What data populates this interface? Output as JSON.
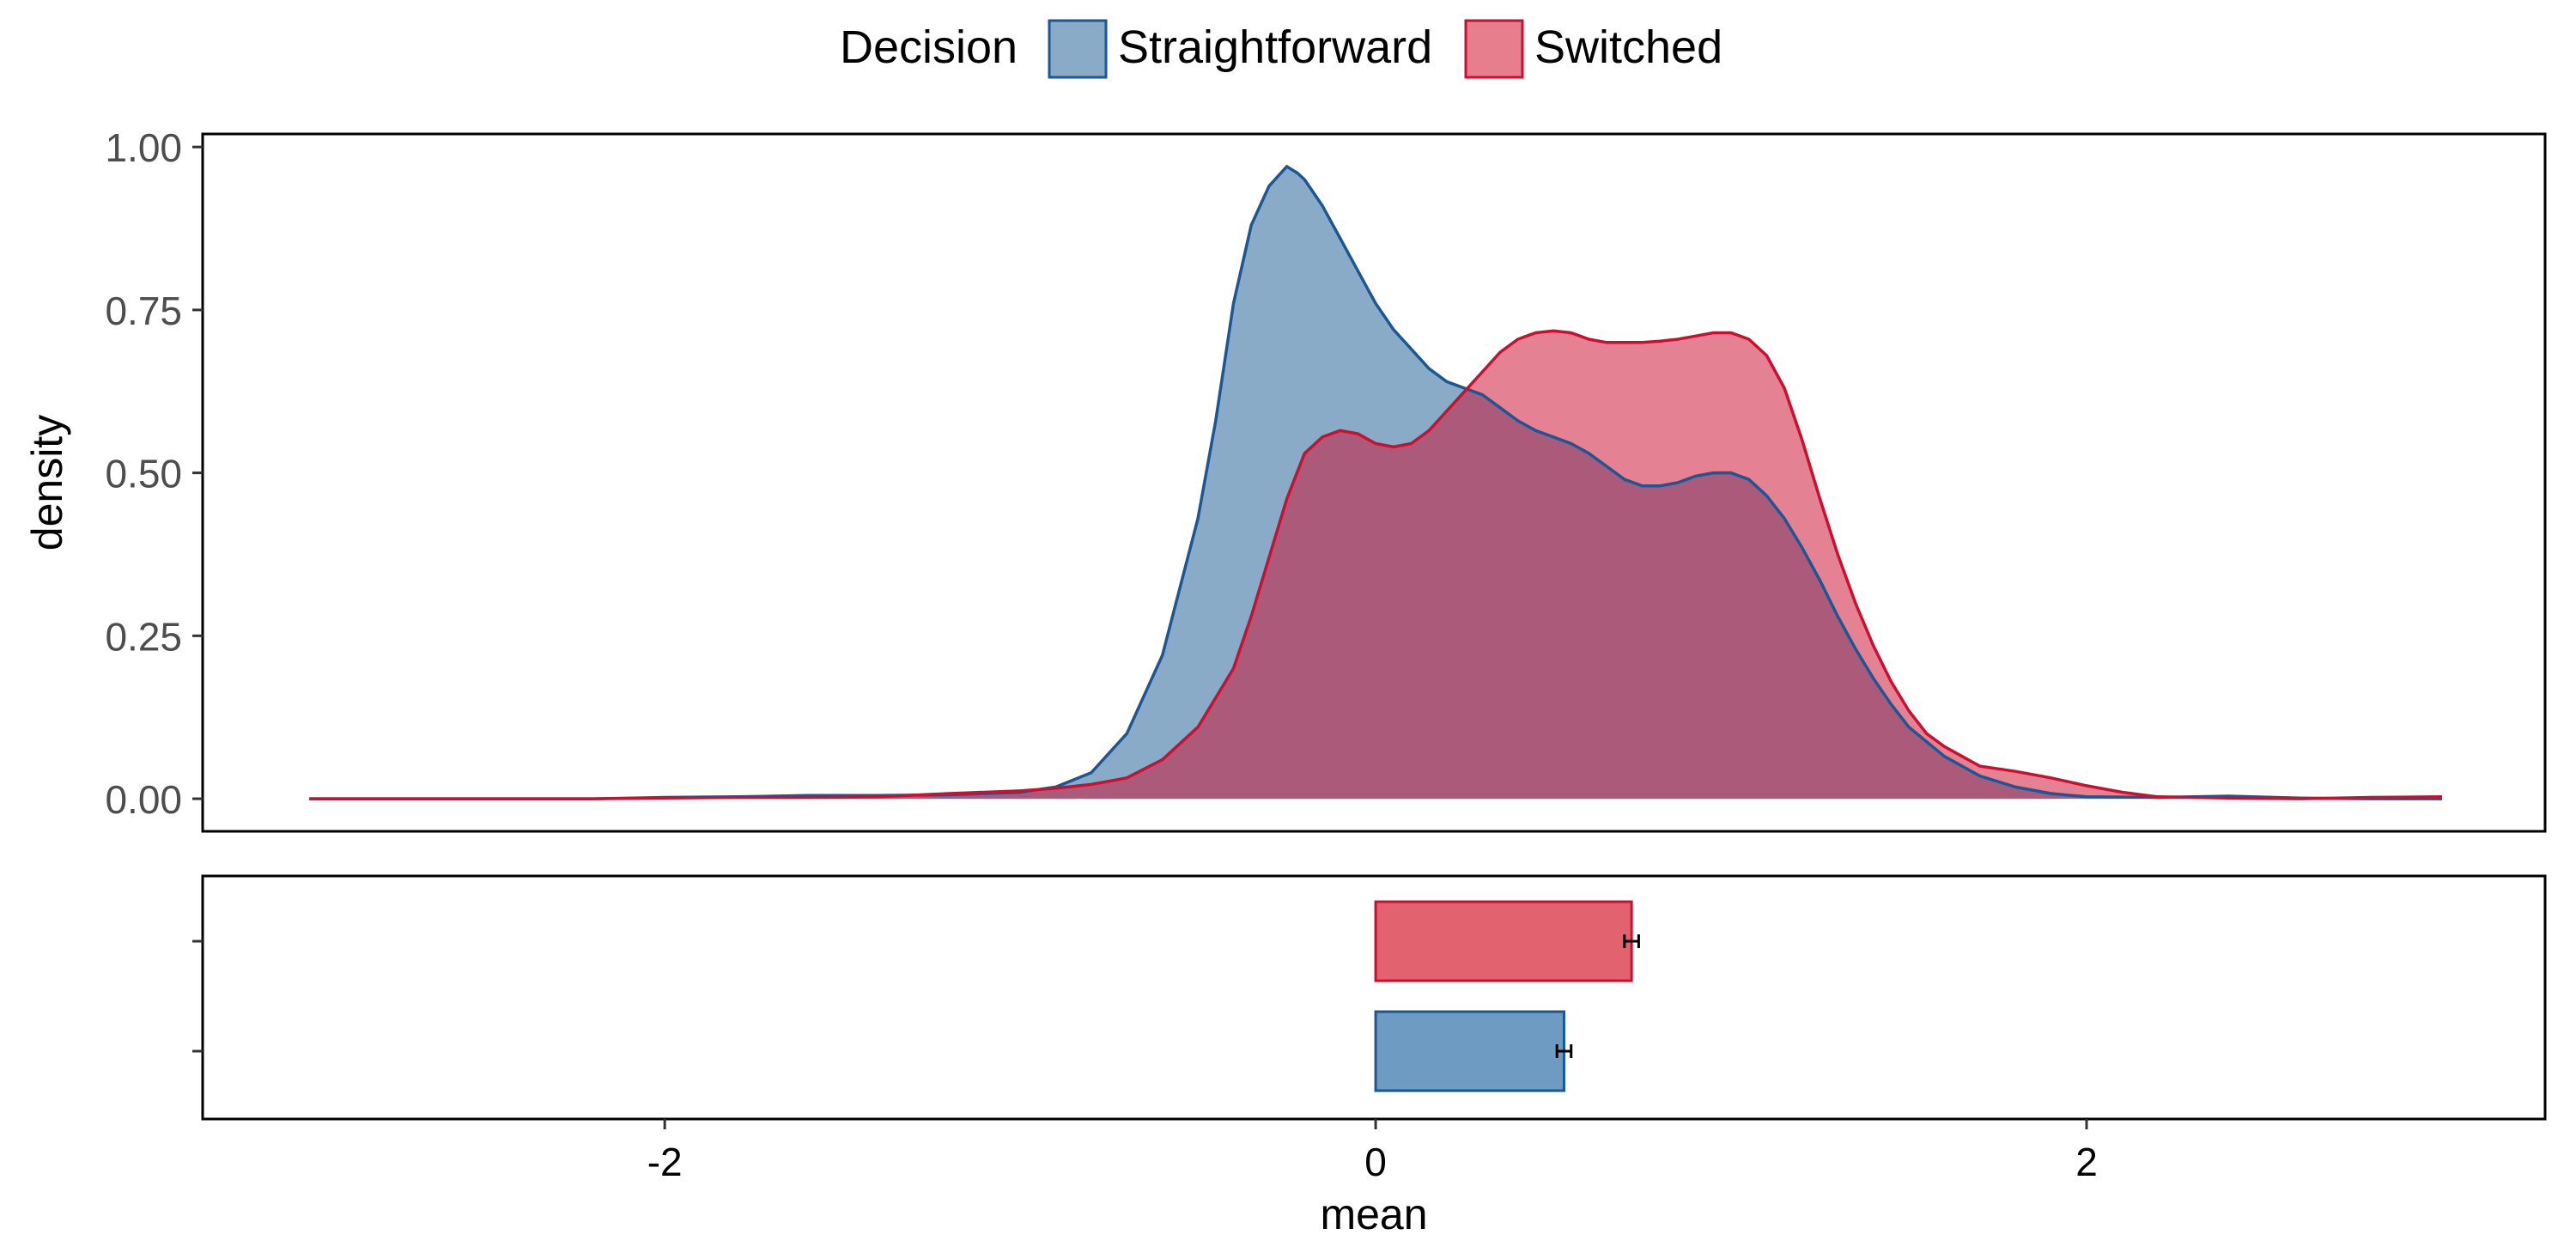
{
  "legend": {
    "title": "Decision",
    "position": "top",
    "items": [
      {
        "label": "Straightforward",
        "fill": "#89abc8",
        "stroke": "#1a5794"
      },
      {
        "label": "Switched",
        "fill": "#e77e8e",
        "stroke": "#cc0f2f"
      }
    ]
  },
  "chart_data": [
    {
      "type": "area",
      "subtype": "density",
      "xlabel": "",
      "ylabel": "density",
      "xlim": [
        -3.3,
        3.29
      ],
      "ylim": [
        -0.05,
        1.02
      ],
      "y_ticks": [
        "0.00",
        "0.25",
        "0.50",
        "0.75",
        "1.00"
      ],
      "y_tick_values": [
        0,
        0.25,
        0.5,
        0.75,
        1.0
      ],
      "grid": false,
      "overlap_fill": "#a9566f",
      "series": [
        {
          "name": "Straightforward",
          "fill": "#89abc8",
          "stroke": "#1a5794",
          "x": [
            -3.0,
            -2.6,
            -2.2,
            -2.0,
            -1.8,
            -1.6,
            -1.4,
            -1.2,
            -1.0,
            -0.9,
            -0.8,
            -0.7,
            -0.6,
            -0.5,
            -0.45,
            -0.4,
            -0.35,
            -0.3,
            -0.25,
            -0.22,
            -0.2,
            -0.15,
            -0.1,
            -0.05,
            0.0,
            0.05,
            0.1,
            0.15,
            0.2,
            0.25,
            0.3,
            0.35,
            0.4,
            0.45,
            0.5,
            0.55,
            0.6,
            0.65,
            0.7,
            0.75,
            0.8,
            0.85,
            0.9,
            0.95,
            1.0,
            1.05,
            1.1,
            1.15,
            1.2,
            1.25,
            1.3,
            1.35,
            1.4,
            1.45,
            1.5,
            1.6,
            1.7,
            1.8,
            1.9,
            2.0,
            2.2,
            2.4,
            2.6,
            2.8,
            3.0
          ],
          "y": [
            0.0,
            0.0,
            0.0,
            0.002,
            0.003,
            0.005,
            0.005,
            0.006,
            0.01,
            0.018,
            0.04,
            0.1,
            0.22,
            0.43,
            0.58,
            0.76,
            0.88,
            0.94,
            0.97,
            0.96,
            0.95,
            0.91,
            0.86,
            0.81,
            0.76,
            0.72,
            0.69,
            0.66,
            0.64,
            0.63,
            0.62,
            0.6,
            0.58,
            0.565,
            0.555,
            0.545,
            0.53,
            0.51,
            0.49,
            0.48,
            0.48,
            0.485,
            0.495,
            0.5,
            0.5,
            0.49,
            0.465,
            0.43,
            0.385,
            0.335,
            0.28,
            0.23,
            0.185,
            0.145,
            0.11,
            0.065,
            0.035,
            0.018,
            0.008,
            0.003,
            0.002,
            0.004,
            0.001,
            0.0,
            0.0
          ]
        },
        {
          "name": "Switched",
          "fill": "#e77e8e",
          "stroke": "#cc0f2f",
          "x": [
            -3.0,
            -2.6,
            -2.2,
            -2.0,
            -1.8,
            -1.6,
            -1.4,
            -1.2,
            -1.0,
            -0.9,
            -0.8,
            -0.7,
            -0.6,
            -0.5,
            -0.4,
            -0.35,
            -0.3,
            -0.25,
            -0.2,
            -0.15,
            -0.1,
            -0.05,
            0.0,
            0.05,
            0.1,
            0.15,
            0.2,
            0.25,
            0.3,
            0.35,
            0.4,
            0.45,
            0.5,
            0.55,
            0.6,
            0.65,
            0.7,
            0.75,
            0.8,
            0.85,
            0.9,
            0.95,
            1.0,
            1.05,
            1.1,
            1.15,
            1.2,
            1.25,
            1.3,
            1.35,
            1.4,
            1.45,
            1.5,
            1.55,
            1.6,
            1.65,
            1.7,
            1.8,
            1.9,
            2.0,
            2.1,
            2.2,
            2.4,
            2.6,
            2.8,
            3.0
          ],
          "y": [
            0.0,
            0.0,
            0.0,
            0.001,
            0.002,
            0.002,
            0.003,
            0.008,
            0.012,
            0.016,
            0.022,
            0.032,
            0.06,
            0.11,
            0.2,
            0.28,
            0.37,
            0.46,
            0.53,
            0.555,
            0.565,
            0.56,
            0.545,
            0.54,
            0.545,
            0.565,
            0.595,
            0.625,
            0.655,
            0.685,
            0.705,
            0.715,
            0.718,
            0.715,
            0.705,
            0.7,
            0.7,
            0.7,
            0.702,
            0.705,
            0.71,
            0.715,
            0.715,
            0.705,
            0.68,
            0.63,
            0.55,
            0.46,
            0.375,
            0.3,
            0.235,
            0.18,
            0.135,
            0.1,
            0.08,
            0.065,
            0.05,
            0.042,
            0.032,
            0.02,
            0.01,
            0.003,
            0.001,
            0.0,
            0.002,
            0.003
          ]
        }
      ]
    },
    {
      "type": "bar",
      "orientation": "horizontal",
      "xlabel": "mean",
      "ylabel": "",
      "xlim": [
        -3.3,
        3.29
      ],
      "x_ticks": [
        "-2",
        "0",
        "2"
      ],
      "x_tick_values": [
        -2,
        0,
        2
      ],
      "grid": false,
      "series": [
        {
          "name": "Switched",
          "value": 0.72,
          "error": 0.02,
          "fill": "#e2626f",
          "stroke": "#cc0f2f"
        },
        {
          "name": "Straightforward",
          "value": 0.53,
          "error": 0.02,
          "fill": "#6e9bc1",
          "stroke": "#1a5794"
        }
      ]
    }
  ]
}
